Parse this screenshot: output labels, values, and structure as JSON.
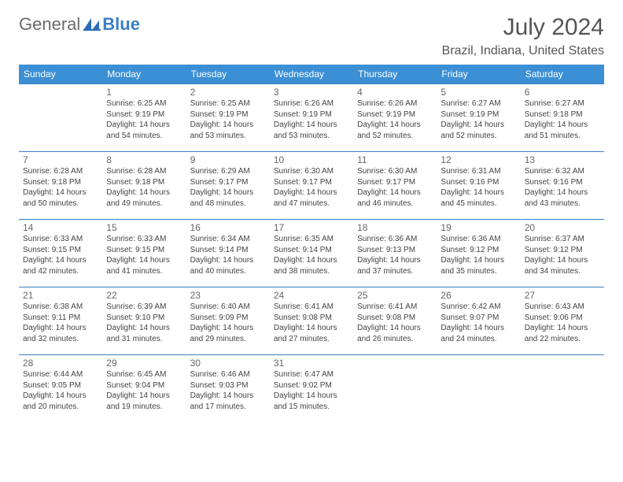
{
  "logo": {
    "word1": "General",
    "word2": "Blue"
  },
  "title": "July 2024",
  "location": "Brazil, Indiana, United States",
  "weekdays": [
    "Sunday",
    "Monday",
    "Tuesday",
    "Wednesday",
    "Thursday",
    "Friday",
    "Saturday"
  ],
  "colors": {
    "header_bg": "#3b8fd4",
    "header_text": "#ffffff",
    "rule": "#3b7fc4",
    "logo_gray": "#6b6b6b",
    "logo_blue": "#3b7fc4",
    "text": "#444444",
    "daynum": "#666666"
  },
  "calendar_type": "sunrise-sunset-daylight-calendar",
  "cells": [
    [
      null,
      {
        "n": "1",
        "sr": "6:25 AM",
        "ss": "9:19 PM",
        "dl": "14 hours and 54 minutes."
      },
      {
        "n": "2",
        "sr": "6:25 AM",
        "ss": "9:19 PM",
        "dl": "14 hours and 53 minutes."
      },
      {
        "n": "3",
        "sr": "6:26 AM",
        "ss": "9:19 PM",
        "dl": "14 hours and 53 minutes."
      },
      {
        "n": "4",
        "sr": "6:26 AM",
        "ss": "9:19 PM",
        "dl": "14 hours and 52 minutes."
      },
      {
        "n": "5",
        "sr": "6:27 AM",
        "ss": "9:19 PM",
        "dl": "14 hours and 52 minutes."
      },
      {
        "n": "6",
        "sr": "6:27 AM",
        "ss": "9:18 PM",
        "dl": "14 hours and 51 minutes."
      }
    ],
    [
      {
        "n": "7",
        "sr": "6:28 AM",
        "ss": "9:18 PM",
        "dl": "14 hours and 50 minutes."
      },
      {
        "n": "8",
        "sr": "6:28 AM",
        "ss": "9:18 PM",
        "dl": "14 hours and 49 minutes."
      },
      {
        "n": "9",
        "sr": "6:29 AM",
        "ss": "9:17 PM",
        "dl": "14 hours and 48 minutes."
      },
      {
        "n": "10",
        "sr": "6:30 AM",
        "ss": "9:17 PM",
        "dl": "14 hours and 47 minutes."
      },
      {
        "n": "11",
        "sr": "6:30 AM",
        "ss": "9:17 PM",
        "dl": "14 hours and 46 minutes."
      },
      {
        "n": "12",
        "sr": "6:31 AM",
        "ss": "9:16 PM",
        "dl": "14 hours and 45 minutes."
      },
      {
        "n": "13",
        "sr": "6:32 AM",
        "ss": "9:16 PM",
        "dl": "14 hours and 43 minutes."
      }
    ],
    [
      {
        "n": "14",
        "sr": "6:33 AM",
        "ss": "9:15 PM",
        "dl": "14 hours and 42 minutes."
      },
      {
        "n": "15",
        "sr": "6:33 AM",
        "ss": "9:15 PM",
        "dl": "14 hours and 41 minutes."
      },
      {
        "n": "16",
        "sr": "6:34 AM",
        "ss": "9:14 PM",
        "dl": "14 hours and 40 minutes."
      },
      {
        "n": "17",
        "sr": "6:35 AM",
        "ss": "9:14 PM",
        "dl": "14 hours and 38 minutes."
      },
      {
        "n": "18",
        "sr": "6:36 AM",
        "ss": "9:13 PM",
        "dl": "14 hours and 37 minutes."
      },
      {
        "n": "19",
        "sr": "6:36 AM",
        "ss": "9:12 PM",
        "dl": "14 hours and 35 minutes."
      },
      {
        "n": "20",
        "sr": "6:37 AM",
        "ss": "9:12 PM",
        "dl": "14 hours and 34 minutes."
      }
    ],
    [
      {
        "n": "21",
        "sr": "6:38 AM",
        "ss": "9:11 PM",
        "dl": "14 hours and 32 minutes."
      },
      {
        "n": "22",
        "sr": "6:39 AM",
        "ss": "9:10 PM",
        "dl": "14 hours and 31 minutes."
      },
      {
        "n": "23",
        "sr": "6:40 AM",
        "ss": "9:09 PM",
        "dl": "14 hours and 29 minutes."
      },
      {
        "n": "24",
        "sr": "6:41 AM",
        "ss": "9:08 PM",
        "dl": "14 hours and 27 minutes."
      },
      {
        "n": "25",
        "sr": "6:41 AM",
        "ss": "9:08 PM",
        "dl": "14 hours and 26 minutes."
      },
      {
        "n": "26",
        "sr": "6:42 AM",
        "ss": "9:07 PM",
        "dl": "14 hours and 24 minutes."
      },
      {
        "n": "27",
        "sr": "6:43 AM",
        "ss": "9:06 PM",
        "dl": "14 hours and 22 minutes."
      }
    ],
    [
      {
        "n": "28",
        "sr": "6:44 AM",
        "ss": "9:05 PM",
        "dl": "14 hours and 20 minutes."
      },
      {
        "n": "29",
        "sr": "6:45 AM",
        "ss": "9:04 PM",
        "dl": "14 hours and 19 minutes."
      },
      {
        "n": "30",
        "sr": "6:46 AM",
        "ss": "9:03 PM",
        "dl": "14 hours and 17 minutes."
      },
      {
        "n": "31",
        "sr": "6:47 AM",
        "ss": "9:02 PM",
        "dl": "14 hours and 15 minutes."
      },
      null,
      null,
      null
    ]
  ],
  "labels": {
    "sunrise": "Sunrise: ",
    "sunset": "Sunset: ",
    "daylight": "Daylight: "
  }
}
